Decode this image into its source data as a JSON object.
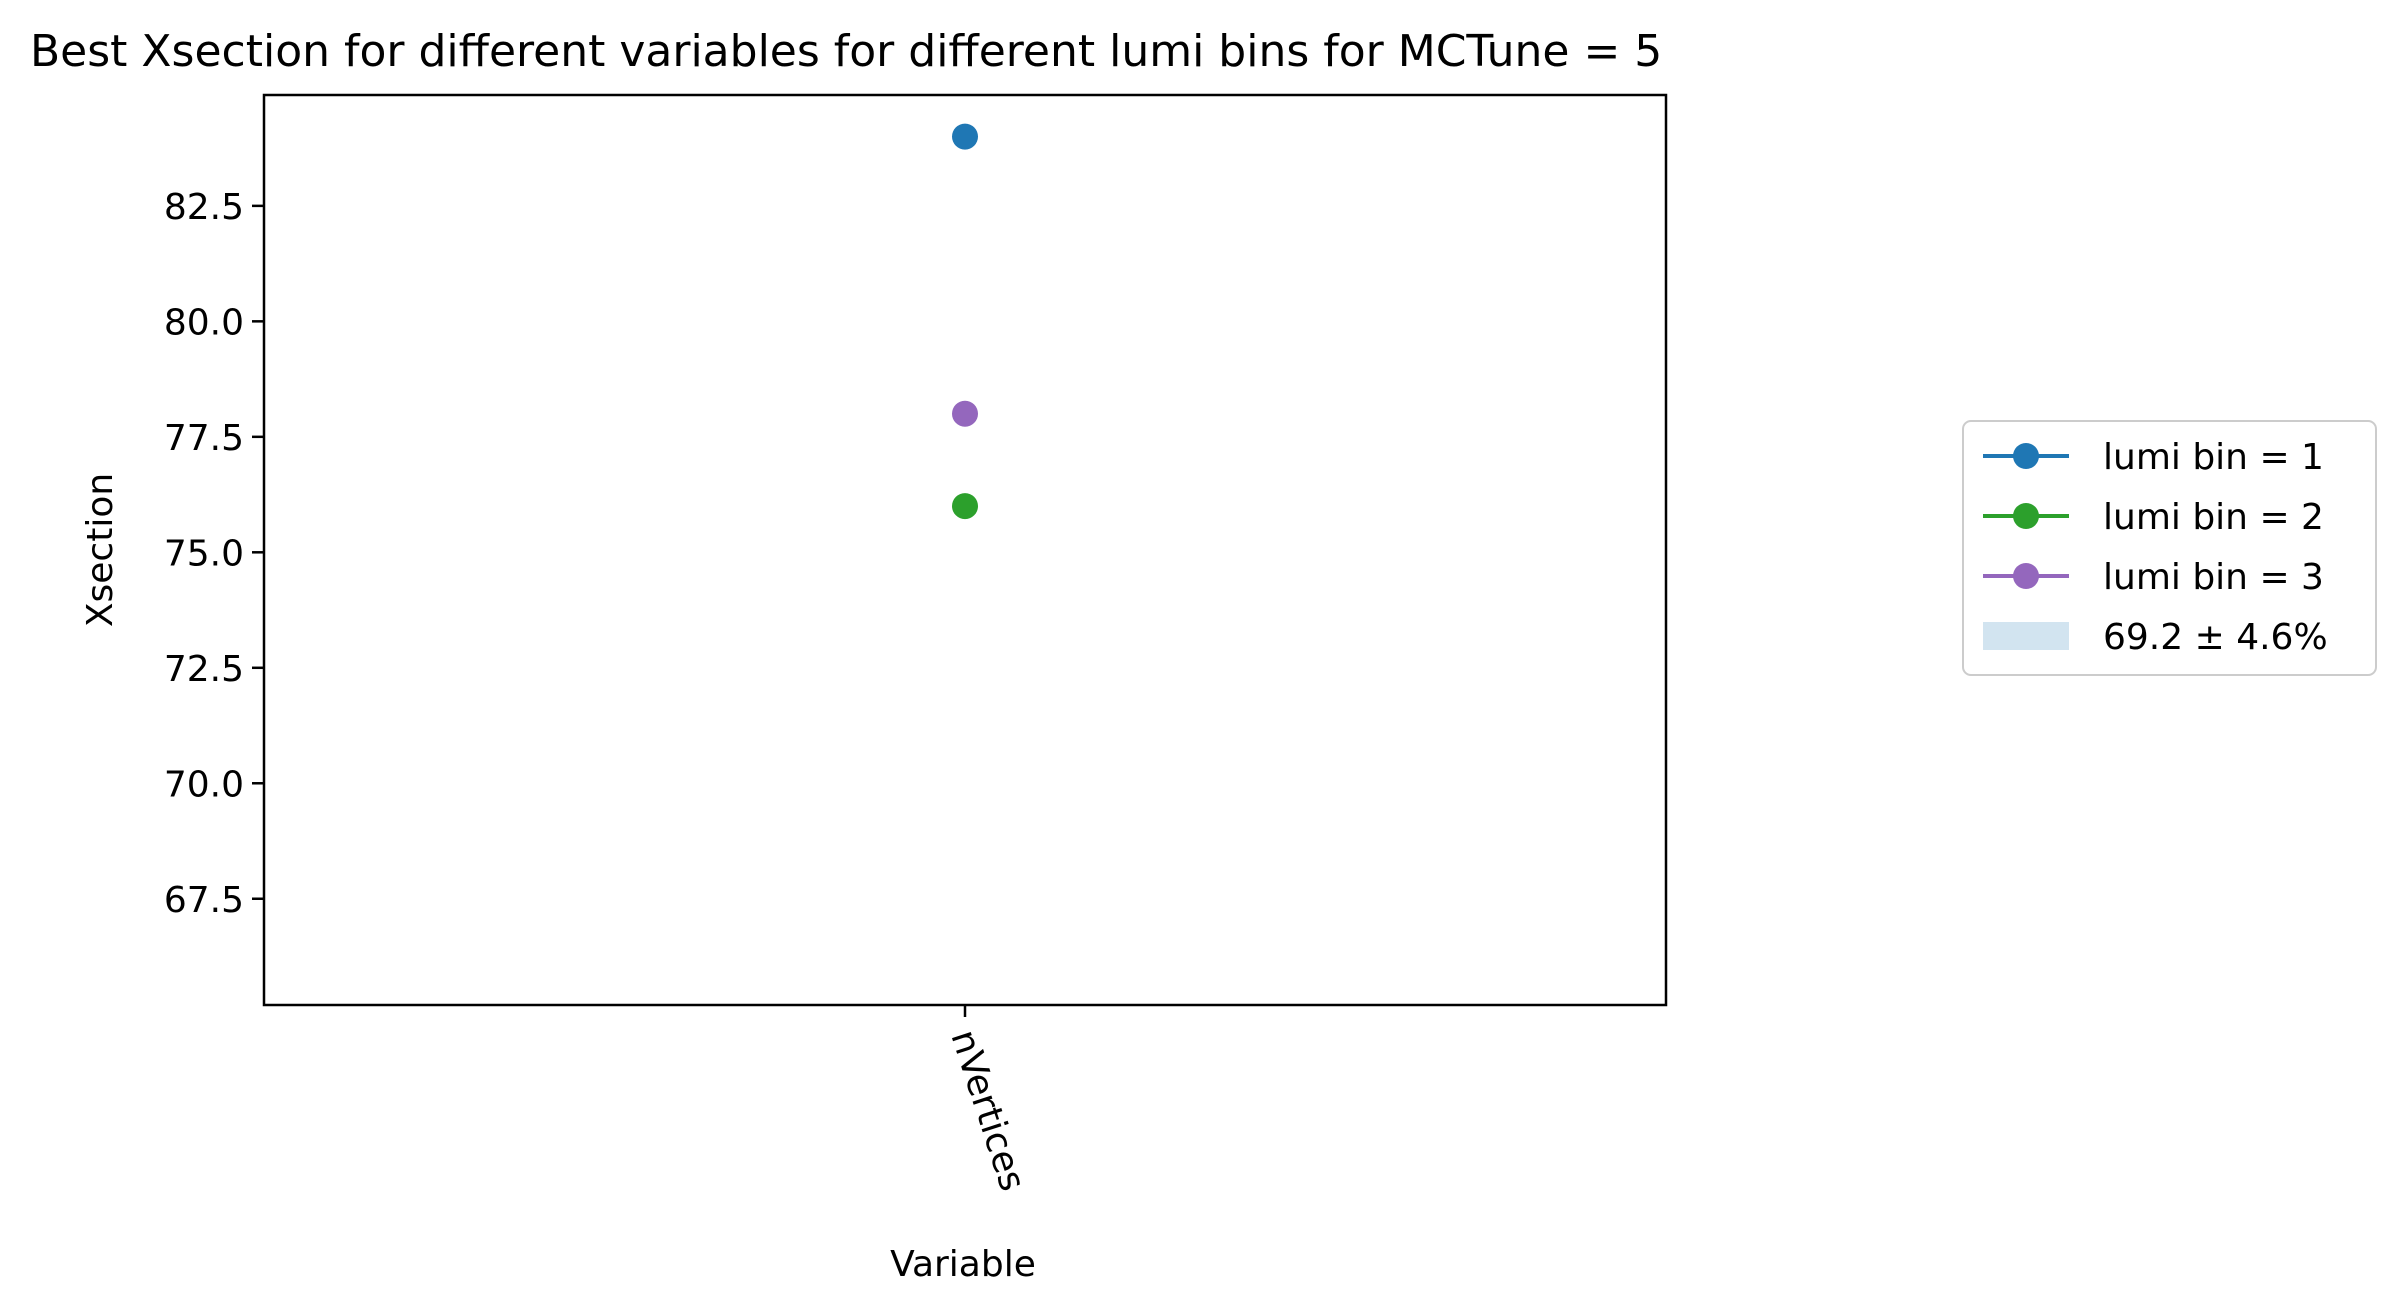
{
  "chart_data": {
    "type": "scatter",
    "title": "Best Xsection for different variables for different lumi bins for MCTune = 5",
    "xlabel": "Variable",
    "ylabel": "Xsection",
    "categories": [
      "nVertices"
    ],
    "ylim": [
      65.2,
      84.9
    ],
    "yticks": [
      "67.5",
      "70.0",
      "72.5",
      "75.0",
      "77.5",
      "80.0",
      "82.5"
    ],
    "grid": false,
    "legend_position": "outside-right",
    "series": [
      {
        "name": "lumi bin = 1",
        "color": "#1f77b4",
        "values": [
          84.0
        ]
      },
      {
        "name": "lumi bin = 2",
        "color": "#2ca02c",
        "values": [
          76.0
        ]
      },
      {
        "name": "lumi bin = 3",
        "color": "#9467bd",
        "values": [
          78.0
        ]
      }
    ],
    "band": {
      "label": "69.2 ± 4.6%",
      "center": 69.2,
      "percent": 4.6,
      "color": "#1f77b4",
      "opacity": 0.2,
      "visible_on_axes": false
    }
  }
}
